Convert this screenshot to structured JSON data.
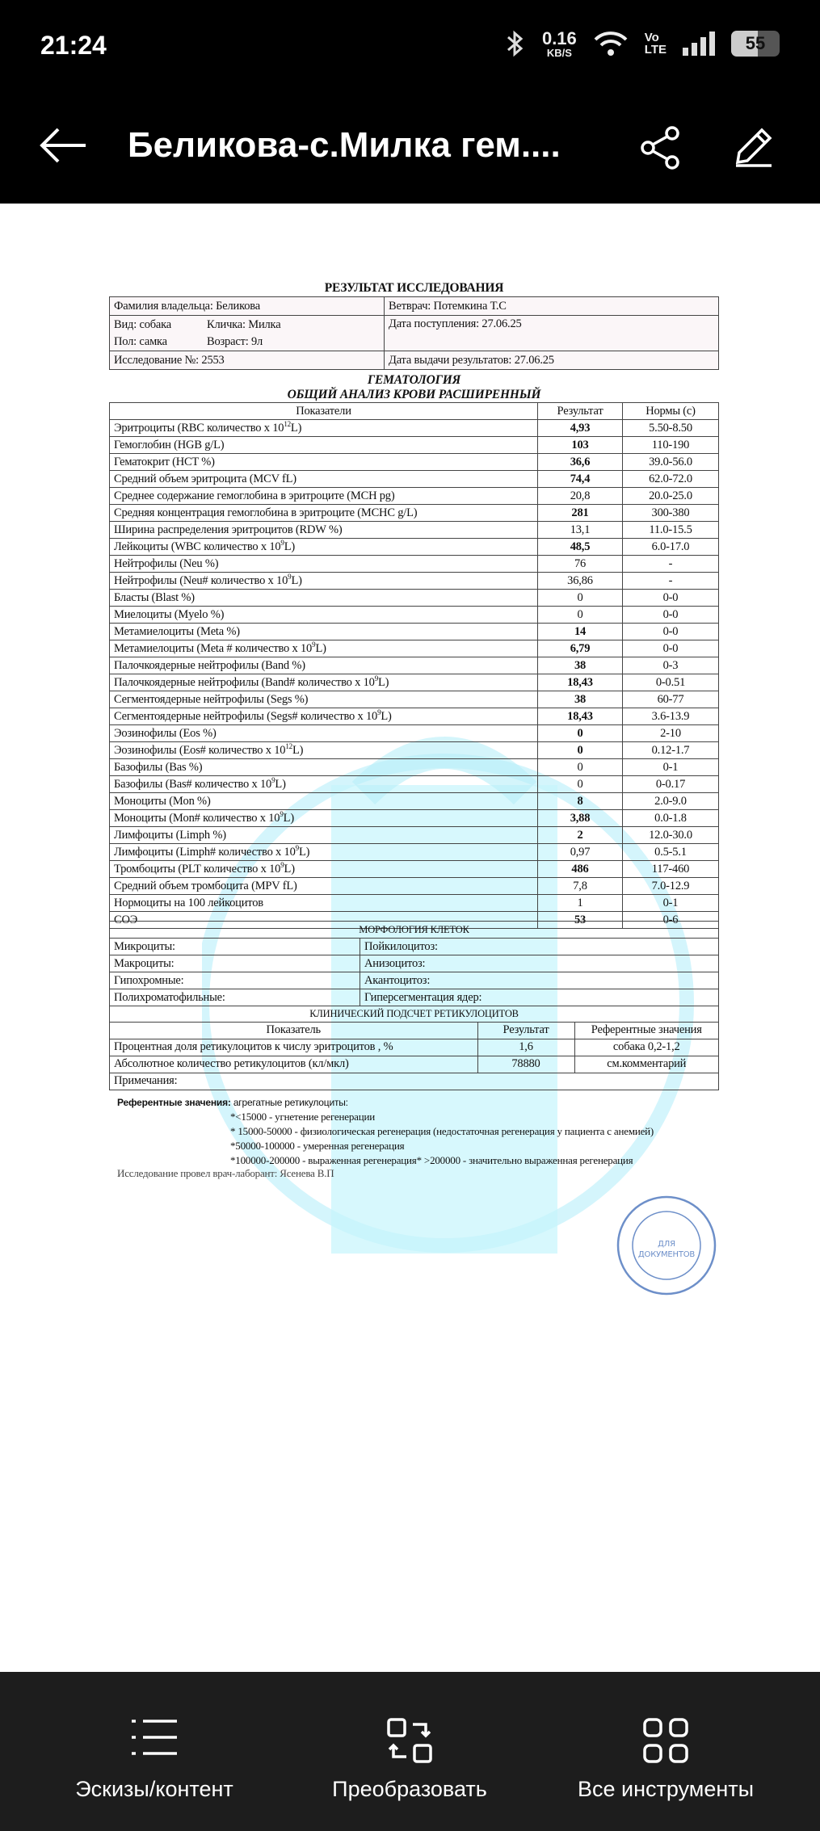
{
  "status": {
    "time": "21:24",
    "speed_value": "0.16",
    "speed_unit": "KB/S",
    "volte_top": "Vo",
    "volte_bottom": "LTE",
    "battery": "55",
    "icons": [
      "bluetooth-icon",
      "wifi-icon",
      "signal-icon",
      "battery-icon"
    ]
  },
  "appbar": {
    "title": "Беликова-с.Милка гем....",
    "icons": [
      "back-arrow-icon",
      "share-icon",
      "edit-pencil-icon"
    ]
  },
  "doc": {
    "title": "РЕЗУЛЬТАТ ИССЛЕДОВАНИЯ",
    "info": {
      "owner": "Фамилия владельца: Беликова",
      "vet": "Ветврач: Потемкина Т.С",
      "species": "Вид: собака",
      "name": "Кличка: Милка",
      "sex": "Пол: самка",
      "age": "Возраст: 9л",
      "received": "Дата поступления: 27.06.25",
      "study_no": "Исследование №: 2553",
      "issued": "Дата выдачи результатов: 27.06.25"
    },
    "section": "ГЕМАТОЛОГИЯ",
    "subsection": "ОБЩИЙ АНАЛИЗ КРОВИ РАСШИРЕННЫЙ",
    "headers": [
      "Показатели",
      "Результат",
      "Нормы (c)"
    ],
    "rows": [
      {
        "pre": "Эритроциты  (RBC количество x 10",
        "exp": "12",
        "post": "L)",
        "value": "4,93",
        "norm": "5.50-8.50",
        "bold": true
      },
      {
        "pre": "Гемоглобин (HGB  g/L)",
        "value": "103",
        "norm": "110-190",
        "bold": true
      },
      {
        "pre": "Гематокрит  (HCT  %)",
        "value": "36,6",
        "norm": "39.0-56.0",
        "bold": true
      },
      {
        "pre": "Средний объем эритроцита  (MCV fL)",
        "value": "74,4",
        "norm": "62.0-72.0",
        "bold": true
      },
      {
        "pre": "Среднее содержание гемоглобина в эритроците (MCH pg)",
        "value": "20,8",
        "norm": "20.0-25.0",
        "bold": false
      },
      {
        "pre": "Средняя  концентрация гемоглобина в эритроците (MCHC g/L)",
        "value": "281",
        "norm": "300-380",
        "bold": true
      },
      {
        "pre": "Ширина распределения эритроцитов  (RDW  %)",
        "value": "13,1",
        "norm": "11.0-15.5",
        "bold": false
      },
      {
        "pre": "Лейкоциты (WBC количество x 10",
        "exp": "9",
        "post": "L)",
        "value": "48,5",
        "norm": "6.0-17.0",
        "bold": true
      },
      {
        "pre": "Нейтрофилы (Neu %)",
        "value": "76",
        "norm": "-",
        "bold": false
      },
      {
        "pre": "Нейтрофилы (Neu#  количество x 10",
        "exp": "9",
        "post": "L)",
        "value": "36,86",
        "norm": "-",
        "bold": false
      },
      {
        "pre": "Бласты (Blast %)",
        "value": "0",
        "norm": "0-0",
        "bold": false
      },
      {
        "pre": "Миелоциты (Myelo %)",
        "value": "0",
        "norm": "0-0",
        "bold": false
      },
      {
        "pre": "Метамиелоциты (Meta %)",
        "value": "14",
        "norm": "0-0",
        "bold": true
      },
      {
        "pre": "Метамиелоциты (Meta # количество x 10",
        "exp": "9",
        "post": "L)",
        "value": "6,79",
        "norm": "0-0",
        "bold": true
      },
      {
        "pre": "Палочкоядерные нейтрофилы (Band %)",
        "value": "38",
        "norm": "0-3",
        "bold": true
      },
      {
        "pre": "Палочкоядерные нейтрофилы (Band# количество x 10",
        "exp": "9",
        "post": "L)",
        "value": "18,43",
        "norm": "0-0.51",
        "bold": true
      },
      {
        "pre": "Сегментоядерные нейтрофилы (Segs %)",
        "value": "38",
        "norm": "60-77",
        "bold": true
      },
      {
        "pre": "Сегментоядерные нейтрофилы (Segs# количество x 10",
        "exp": "9",
        "post": "L)",
        "value": "18,43",
        "norm": "3.6-13.9",
        "bold": true
      },
      {
        "pre": "Эозинофилы  (Eos %)",
        "value": "0",
        "norm": "2-10",
        "bold": true
      },
      {
        "pre": "Эозинофилы (Eos# количество x 10",
        "exp": "12",
        "post": "L)",
        "value": "0",
        "norm": "0.12-1.7",
        "bold": true
      },
      {
        "pre": "Базофилы (Bas %)",
        "value": "0",
        "norm": "0-1",
        "bold": false
      },
      {
        "pre": "Базофилы (Bas# количество x 10",
        "exp": "9",
        "post": "L)",
        "value": "0",
        "norm": "0-0.17",
        "bold": false
      },
      {
        "pre": "Моноциты   (Mon %)",
        "value": "8",
        "norm": "2.0-9.0",
        "bold": true
      },
      {
        "pre": "Моноциты   (Mon#  количество x 10",
        "exp": "9",
        "post": "L)",
        "value": "3,88",
        "norm": "0.0-1.8",
        "bold": true
      },
      {
        "pre": "Лимфоциты  (Limph %)",
        "value": "2",
        "norm": "12.0-30.0",
        "bold": true
      },
      {
        "pre": "Лимфоциты (Limph#  количество x 10",
        "exp": "9",
        "post": "L)",
        "value": "0,97",
        "norm": "0.5-5.1",
        "bold": false
      },
      {
        "pre": "Тромбоциты  (PLT количество x 10",
        "exp": "9",
        "post": "L)",
        "value": "486",
        "norm": "117-460",
        "bold": true
      },
      {
        "pre": "Средний объем тромбоцита (MPV fL)",
        "value": "7,8",
        "norm": "7.0-12.9",
        "bold": false
      },
      {
        "pre": "Нормоциты на 100 лейкоцитов",
        "value": "1",
        "norm": "0-1",
        "bold": false
      },
      {
        "pre": "СОЭ",
        "value": "53",
        "norm": "0-6",
        "bold": true
      }
    ],
    "morph_title": "МОРФОЛОГИЯ КЛЕТОК",
    "morph": [
      [
        "Микроциты:",
        "Пойкилоцитоз:"
      ],
      [
        "Макроциты:",
        "Анизоцитоз:"
      ],
      [
        "Гипохромные:",
        "Акантоцитоз:"
      ],
      [
        "Полихроматофильные:",
        "Гиперсегментация ядер:"
      ]
    ],
    "retic_title": "КЛИНИЧЕСКИЙ ПОДСЧЕТ РЕТИКУЛОЦИТОВ",
    "retic_headers": [
      "Показатель",
      "Результат",
      "Референтные значения"
    ],
    "retic_rows": [
      [
        "Процентная доля ретикулоцитов к числу  эритроцитов , %",
        "1,6",
        "собака 0,2-1,2"
      ],
      [
        "Абсолютное количество ретикулоцитов (кл/мкл)",
        "78880",
        "см.комментарий"
      ]
    ],
    "notes": "Примечания:",
    "ref_label": "Референтные значения:",
    "ref_text": " агрегатные ретикулоциты:",
    "ref_lines": [
      "*<15000 - угнетение регенерации",
      "* 15000-50000 - физиологическая регенерация (недостаточная регенерация у пациента с анемией)",
      "*50000-100000 - умеренная регенерация",
      "*100000-200000 - выраженная регенерация* >200000 - значительно выраженная регенерация"
    ],
    "lab": "Исследование провел врач-лаборант: Ясенева В.П",
    "stamp_text": "ДЛЯ ДОКУМЕНТОВ",
    "watermark_color": "#7fe3f5"
  },
  "bottom": {
    "items": [
      {
        "label": "Эскизы/контент",
        "icon": "list-icon"
      },
      {
        "label": "Преобразовать",
        "icon": "convert-icon"
      },
      {
        "label": "Все инструменты",
        "icon": "grid-tools-icon"
      }
    ]
  }
}
